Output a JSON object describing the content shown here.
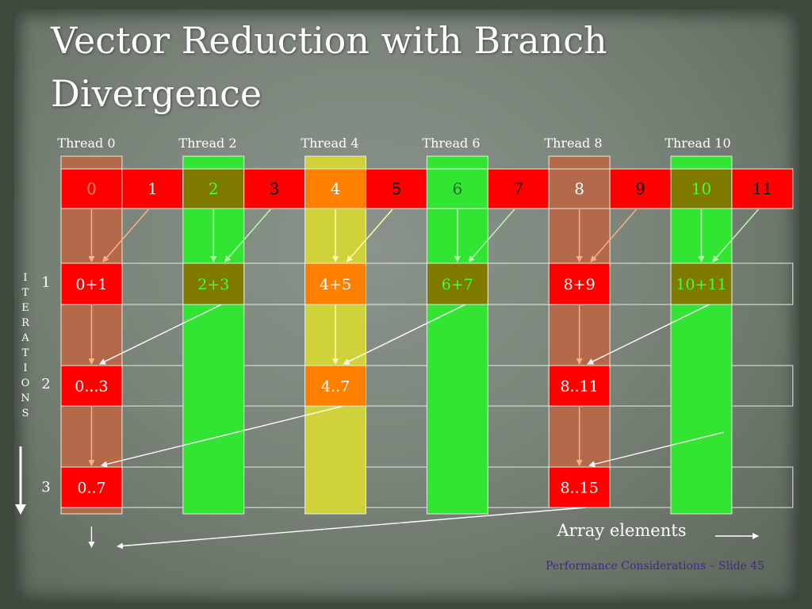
{
  "slide": {
    "title_line1": "Vector Reduction with Branch",
    "title_line2": "Divergence",
    "footer": "Performance Considerations – Slide 45"
  },
  "diagram": {
    "threads": [
      "Thread 0",
      "Thread 2",
      "Thread 4",
      "Thread 6",
      "Thread 8",
      "Thread 10"
    ],
    "array_elements": [
      "0",
      "1",
      "2",
      "3",
      "4",
      "5",
      "6",
      "7",
      "8",
      "9",
      "10",
      "11"
    ],
    "iterations_label": [
      "I",
      "T",
      "E",
      "R",
      "A",
      "T",
      "I",
      "O",
      "N",
      "S"
    ],
    "iteration_numbers": [
      "1",
      "2",
      "3"
    ],
    "iteration_rows": [
      [
        "0+1",
        "2+3",
        "4+5",
        "6+7",
        "8+9",
        "10+11"
      ],
      [
        "0...3",
        "4..7",
        "8..11"
      ],
      [
        "0..7",
        "8..15"
      ]
    ],
    "array_elements_label": "Array elements"
  },
  "colors": {
    "red": "#ff0000",
    "orange": "#ff7f00",
    "olive": "#7f7a00",
    "green_column": "#33e533",
    "yellow_column": "#d0d23a",
    "brown_column": "#b46a4a"
  }
}
